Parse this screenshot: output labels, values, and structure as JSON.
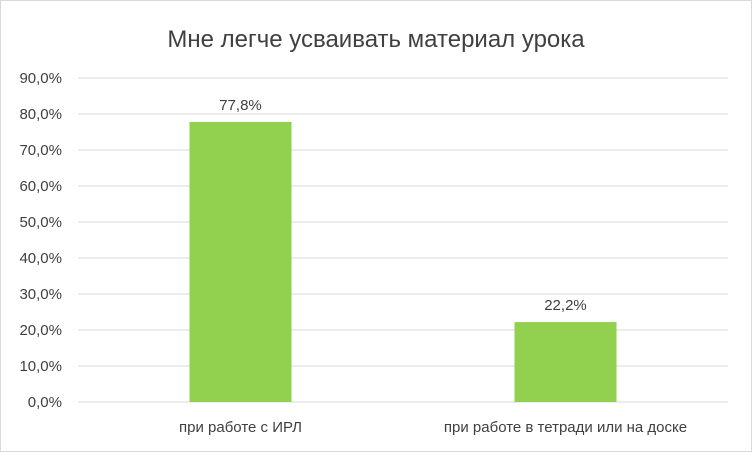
{
  "chart_data": {
    "type": "bar",
    "title": "Мне легче усваивать материал урока",
    "categories": [
      "при работе с ИРЛ",
      "при работе в тетради или на доске"
    ],
    "values": [
      77.8,
      22.2
    ],
    "data_labels": [
      "77,8%",
      "22,2%"
    ],
    "y_ticks": [
      "0,0%",
      "10,0%",
      "20,0%",
      "30,0%",
      "40,0%",
      "50,0%",
      "60,0%",
      "70,0%",
      "80,0%",
      "90,0%"
    ],
    "ylim": [
      0,
      90
    ],
    "grid": true,
    "bar_color": "#92d050"
  }
}
